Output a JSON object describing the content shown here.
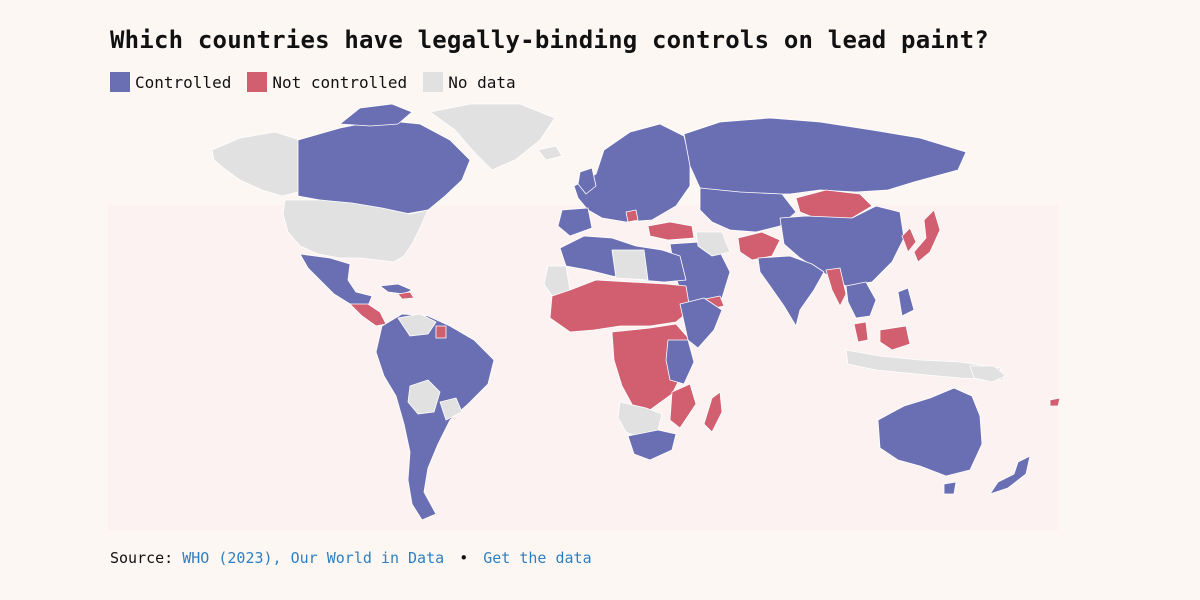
{
  "title": "Which countries have legally-binding controls on lead paint?",
  "legend": [
    {
      "label": "Controlled",
      "color": "#6a6fb4"
    },
    {
      "label": "Not controlled",
      "color": "#d15f70"
    },
    {
      "label": "No data",
      "color": "#e1e1e1"
    }
  ],
  "footer": {
    "prefix": "Source:",
    "source_link": "WHO (2023), Our World in Data",
    "separator": "•",
    "data_link": "Get the data"
  },
  "colors": {
    "controlled": "#6a6fb4",
    "not_controlled": "#d15f70",
    "no_data": "#e1e1e1",
    "background": "#fdf7f4"
  }
}
